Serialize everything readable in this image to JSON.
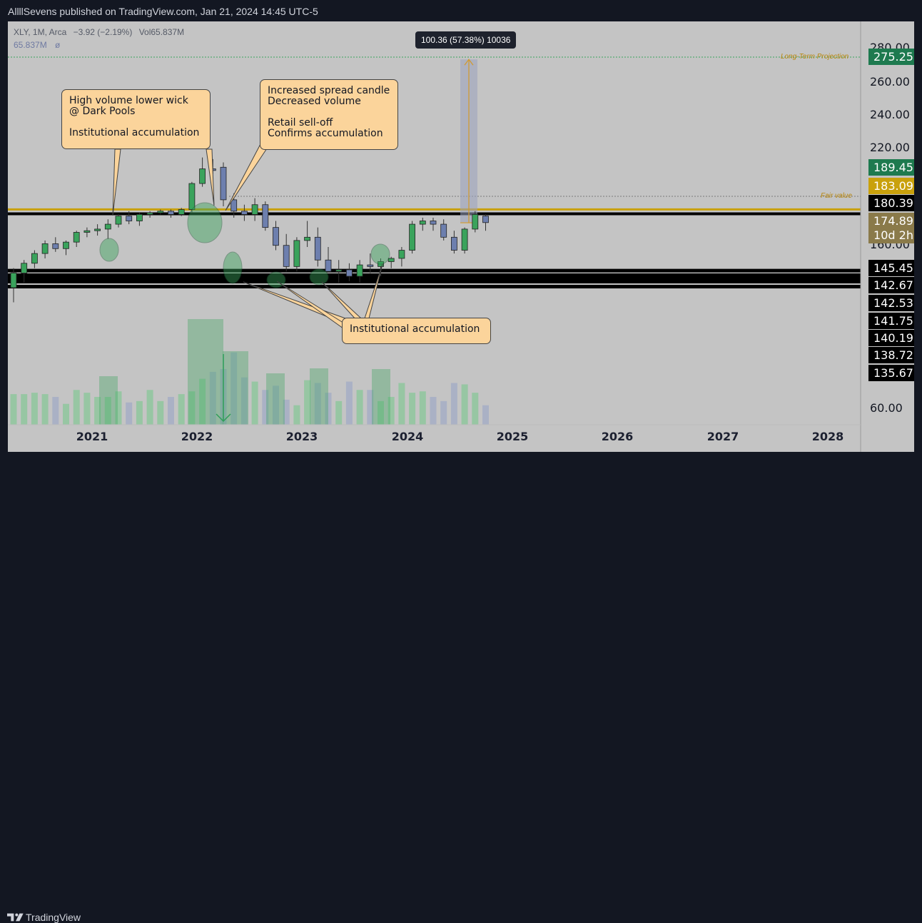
{
  "header": {
    "published_text": "AllllSevens published on TradingView.com, Jan 21, 2024 14:45 UTC-5"
  },
  "legend": {
    "symbol": "XLY, 1M, Arca",
    "change": "−3.92 (−2.19%)",
    "volume": "Vol65.837M",
    "volume_ma": "65.837M",
    "volume_ma_symbol": "ø"
  },
  "measure_tooltip": "100.36 (57.38%) 10036",
  "labels": {
    "long_term_projection": "Long-Term Projection",
    "fair_value": "Fair value"
  },
  "callouts": {
    "high_volume": "High volume lower wick\n@ Dark Pools\n\nInstitutional accumulation",
    "increased_spread": "Increased spread candle\nDecreased volume\n\nRetail sell-off\nConfirms accumulation",
    "institutional": "Institutional accumulation"
  },
  "price_axis": {
    "ticks": [
      "280.00",
      "260.00",
      "240.00",
      "220.00",
      "160.00",
      "60.00"
    ],
    "tags": [
      {
        "value": "275.25",
        "color": "#1e7a4f"
      },
      {
        "value": "189.45",
        "color": "#1e7a4f"
      },
      {
        "value": "183.09",
        "color": "#c9a10c"
      },
      {
        "value": "180.39",
        "color": "#000000"
      },
      {
        "value": "174.89",
        "color": "#8a7a4a"
      },
      {
        "value": "10d 2h",
        "color": "#8a7a4a"
      },
      {
        "value": "145.45",
        "color": "#000000"
      },
      {
        "value": "142.67",
        "color": "#000000"
      },
      {
        "value": "142.53",
        "color": "#000000"
      },
      {
        "value": "141.75",
        "color": "#000000"
      },
      {
        "value": "140.19",
        "color": "#000000"
      },
      {
        "value": "138.72",
        "color": "#000000"
      },
      {
        "value": "135.67",
        "color": "#000000"
      }
    ]
  },
  "time_axis": [
    "2021",
    "2022",
    "2023",
    "2024",
    "2025",
    "2026",
    "2027",
    "2028"
  ],
  "footer": {
    "brand": "TradingView"
  },
  "colors": {
    "up": "#3aa35c",
    "down": "#6d7fae",
    "fair_value_line": "#c9a10c",
    "bg": "#c4c4c4",
    "support_line": "#000000"
  },
  "chart_data": {
    "type": "candlestick",
    "title": "XLY, 1M, Arca",
    "series": [
      {
        "name": "XLY",
        "candles": [
          {
            "o": 135,
            "h": 147,
            "l": 126,
            "c": 144
          },
          {
            "o": 144,
            "h": 152,
            "l": 138,
            "c": 150
          },
          {
            "o": 150,
            "h": 158,
            "l": 147,
            "c": 156
          },
          {
            "o": 156,
            "h": 164,
            "l": 153,
            "c": 162
          },
          {
            "o": 162,
            "h": 166,
            "l": 157,
            "c": 159
          },
          {
            "o": 159,
            "h": 164,
            "l": 155,
            "c": 163
          },
          {
            "o": 163,
            "h": 170,
            "l": 160,
            "c": 169
          },
          {
            "o": 169,
            "h": 172,
            "l": 166,
            "c": 170
          },
          {
            "o": 170,
            "h": 174,
            "l": 167,
            "c": 171
          },
          {
            "o": 171,
            "h": 177,
            "l": 165,
            "c": 174
          },
          {
            "o": 174,
            "h": 180,
            "l": 172,
            "c": 179
          },
          {
            "o": 179,
            "h": 182,
            "l": 174,
            "c": 176
          },
          {
            "o": 176,
            "h": 181,
            "l": 173,
            "c": 180
          },
          {
            "o": 180,
            "h": 182,
            "l": 178,
            "c": 181
          },
          {
            "o": 181,
            "h": 183,
            "l": 180,
            "c": 182
          },
          {
            "o": 182,
            "h": 183,
            "l": 178,
            "c": 180
          },
          {
            "o": 180,
            "h": 184,
            "l": 179,
            "c": 183
          },
          {
            "o": 183,
            "h": 200,
            "l": 181,
            "c": 199
          },
          {
            "o": 199,
            "h": 215,
            "l": 197,
            "c": 208
          },
          {
            "o": 208,
            "h": 214,
            "l": 205,
            "c": 207
          },
          {
            "o": 209,
            "h": 212,
            "l": 185,
            "c": 189
          },
          {
            "o": 189,
            "h": 193,
            "l": 178,
            "c": 182
          },
          {
            "o": 182,
            "h": 186,
            "l": 176,
            "c": 180
          },
          {
            "o": 180,
            "h": 190,
            "l": 176,
            "c": 186
          },
          {
            "o": 186,
            "h": 188,
            "l": 170,
            "c": 172
          },
          {
            "o": 172,
            "h": 176,
            "l": 158,
            "c": 161
          },
          {
            "o": 161,
            "h": 168,
            "l": 145,
            "c": 148
          },
          {
            "o": 148,
            "h": 166,
            "l": 145,
            "c": 164
          },
          {
            "o": 164,
            "h": 176,
            "l": 160,
            "c": 166
          },
          {
            "o": 166,
            "h": 172,
            "l": 148,
            "c": 152
          },
          {
            "o": 152,
            "h": 160,
            "l": 145,
            "c": 145
          },
          {
            "o": 145,
            "h": 152,
            "l": 138,
            "c": 146
          },
          {
            "o": 146,
            "h": 150,
            "l": 139,
            "c": 142
          },
          {
            "o": 142,
            "h": 152,
            "l": 138,
            "c": 149
          },
          {
            "o": 149,
            "h": 156,
            "l": 144,
            "c": 148
          },
          {
            "o": 148,
            "h": 153,
            "l": 142,
            "c": 151
          },
          {
            "o": 151,
            "h": 154,
            "l": 147,
            "c": 153
          },
          {
            "o": 153,
            "h": 160,
            "l": 148,
            "c": 158
          },
          {
            "o": 158,
            "h": 176,
            "l": 156,
            "c": 174
          },
          {
            "o": 174,
            "h": 178,
            "l": 170,
            "c": 176
          },
          {
            "o": 176,
            "h": 178,
            "l": 170,
            "c": 174
          },
          {
            "o": 174,
            "h": 177,
            "l": 164,
            "c": 166
          },
          {
            "o": 166,
            "h": 170,
            "l": 156,
            "c": 158
          },
          {
            "o": 158,
            "h": 172,
            "l": 156,
            "c": 171
          },
          {
            "o": 171,
            "h": 182,
            "l": 169,
            "c": 180
          },
          {
            "o": 179,
            "h": 180,
            "l": 170,
            "c": 175
          }
        ]
      }
    ],
    "volume": [
      22,
      22,
      23,
      22,
      20,
      15,
      25,
      23,
      20,
      20,
      24,
      16,
      17,
      25,
      17,
      20,
      22,
      24,
      33,
      38,
      40,
      52,
      34,
      31,
      25,
      28,
      18,
      14,
      32,
      30,
      23,
      17,
      31,
      25,
      25,
      17,
      20,
      30,
      23,
      24,
      20,
      17,
      30,
      29,
      23,
      14
    ],
    "projection": {
      "from": 174.89,
      "to": 275.25,
      "change": "100.36 (57.38%) 10036"
    },
    "levels": [
      180.39,
      183.09,
      145.45,
      142.67,
      142.53,
      141.75,
      140.19,
      138.72,
      135.67
    ],
    "x_labels": [
      "2021",
      "2022",
      "2023",
      "2024",
      "2025",
      "2026",
      "2027",
      "2028"
    ],
    "y_ticks": [
      "280.00",
      "260.00",
      "240.00",
      "220.00",
      "160.00",
      "60.00"
    ]
  }
}
